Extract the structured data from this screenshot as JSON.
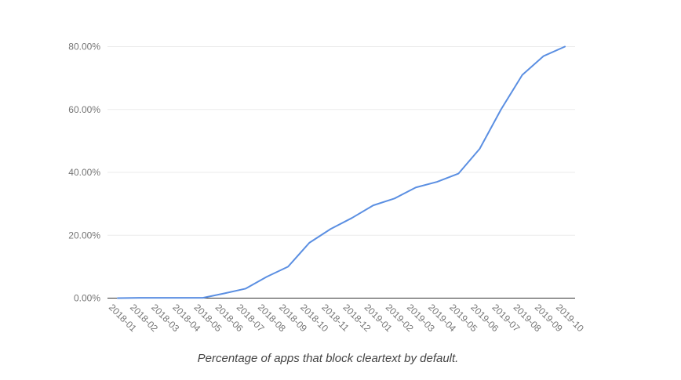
{
  "chart_data": {
    "type": "line",
    "title": "",
    "xlabel": "",
    "ylabel": "",
    "ylim": [
      0,
      80
    ],
    "y_ticks": [
      0,
      20,
      40,
      60,
      80
    ],
    "y_tick_labels": [
      "0.00%",
      "20.00%",
      "40.00%",
      "60.00%",
      "80.00%"
    ],
    "grid": true,
    "legend": "none",
    "categories": [
      "2018-01",
      "2018-02",
      "2018-03",
      "2018-04",
      "2018-05",
      "2018-06",
      "2018-07",
      "2018-08",
      "2018-09",
      "2018-10",
      "2018-11",
      "2018-12",
      "2019-01",
      "2019-02",
      "2019-03",
      "2019-04",
      "2019-05",
      "2019-06",
      "2019-07",
      "2019-08",
      "2019-09",
      "2019-10"
    ],
    "series": [
      {
        "name": "Percentage of apps that block cleartext",
        "color": "#5b8fe2",
        "values": [
          0.0,
          0.1,
          0.1,
          0.1,
          0.1,
          1.5,
          3.0,
          6.8,
          10.0,
          17.6,
          22.0,
          25.5,
          29.5,
          31.7,
          35.2,
          37.0,
          39.6,
          47.5,
          60.0,
          71.0,
          77.0,
          80.0
        ]
      }
    ]
  },
  "caption": "Percentage of apps that block cleartext by default."
}
